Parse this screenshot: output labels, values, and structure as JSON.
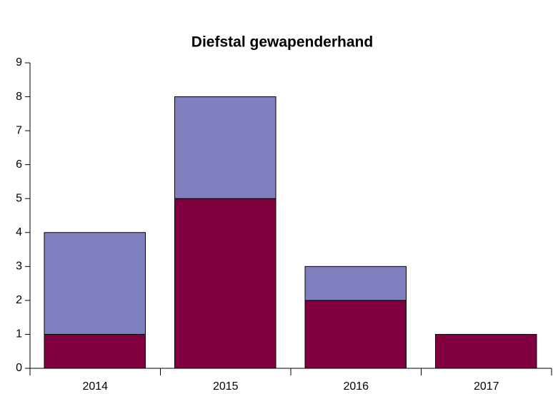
{
  "chart_data": {
    "type": "stacked_bar",
    "title": "Diefstal gewapenderhand",
    "categories": [
      "2014",
      "2015",
      "2016",
      "2017"
    ],
    "series": [
      {
        "color": "#800040",
        "values": [
          1,
          5,
          2,
          1
        ]
      },
      {
        "color": "#8080c0",
        "values": [
          3,
          3,
          1,
          0
        ]
      }
    ],
    "ylim": [
      0,
      9
    ],
    "yticks": [
      0,
      1,
      2,
      3,
      4,
      5,
      6,
      7,
      8,
      9
    ]
  }
}
